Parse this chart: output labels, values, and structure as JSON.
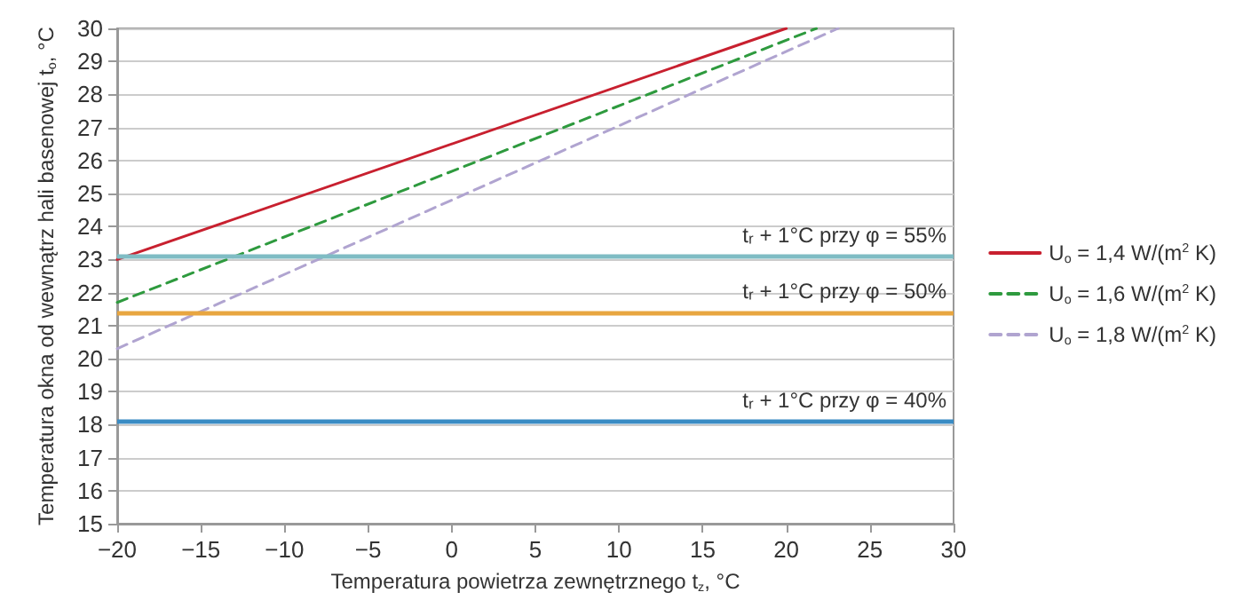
{
  "chart_data": {
    "type": "line",
    "xlabel": "Temperatura powietrza zewnętrznego t$_{z}$, °C",
    "ylabel": "Temperatura okna od wewnątrz hali basenowej t$_{o}$, °C",
    "series": [
      {
        "name": "U$_{o}$ = 1,4 W/(m$^{2}$ K)",
        "color": "#c8202f",
        "x": [
          -20,
          20
        ],
        "values": [
          23,
          30
        ],
        "line_style": "solid"
      },
      {
        "name": "U$_{o}$ = 1,6 W/(m$^{2}$ K)",
        "color": "#2e9a3e",
        "x": [
          -20,
          21.8
        ],
        "values": [
          21.7,
          30
        ],
        "line_style": "dashed"
      },
      {
        "name": "U$_{o}$ = 1,8 W/(m$^{2}$ K)",
        "color": "#b0a4d0",
        "x": [
          -20,
          23.1
        ],
        "values": [
          20.3,
          30
        ],
        "line_style": "dashed"
      }
    ],
    "ref_lines": [
      {
        "axis": "y",
        "value": 23.1,
        "color": "#7fbcc4"
      },
      {
        "axis": "y",
        "value": 21.4,
        "color": "#e8a640"
      },
      {
        "axis": "y",
        "value": 18.1,
        "color": "#3a8cc4"
      }
    ],
    "annotations": [
      {
        "text": "tᵣ + 1°C przy φ = 55%",
        "y": 23.1
      },
      {
        "text": "tᵣ + 1°C przy φ = 50%",
        "y": 21.4
      },
      {
        "text": "tᵣ + 1°C przy φ = 40%",
        "y": 18.1
      }
    ],
    "xlim": [
      -20,
      30
    ],
    "xticks": [
      {
        "value": -20,
        "label": "−20"
      },
      {
        "value": -15,
        "label": "−15"
      },
      {
        "value": -10,
        "label": "−10"
      },
      {
        "value": -5,
        "label": "−5"
      },
      0,
      5,
      10,
      15,
      20,
      25,
      30
    ],
    "ylim": [
      15,
      30
    ],
    "yticks": [
      15,
      16,
      17,
      18,
      19,
      20,
      21,
      22,
      23,
      24,
      25,
      26,
      27,
      28,
      29,
      30
    ],
    "grid": "y",
    "legend": "right",
    "marker": "none"
  }
}
